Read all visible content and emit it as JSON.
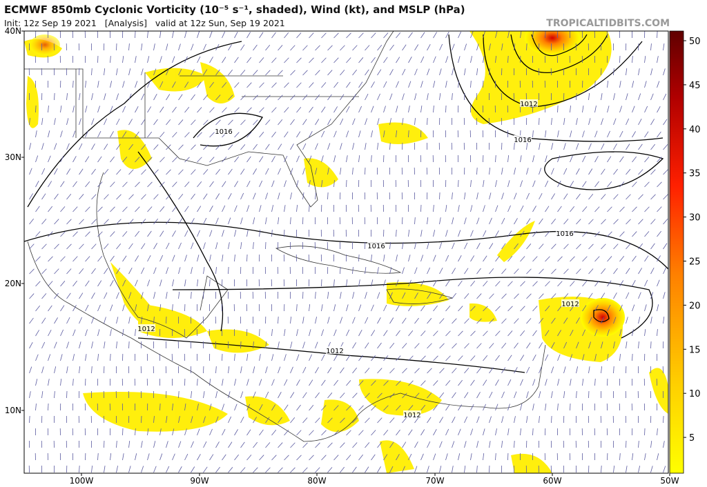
{
  "header": {
    "title": "ECMWF 850mb Cyclonic Vorticity (10⁻⁵ s⁻¹, shaded), Wind (kt), and MSLP (hPa)",
    "subtitle": "Init: 12z Sep 19 2021   [Analysis]   valid at 12z Sun, Sep 19 2021",
    "watermark": "TROPICALTIDBITS.COM"
  },
  "axes": {
    "latitude_labels": [
      "40N",
      "30N",
      "20N",
      "10N"
    ],
    "longitude_labels": [
      "100W",
      "90W",
      "80W",
      "70W",
      "60W",
      "50W"
    ]
  },
  "colorbar": {
    "labels": [
      "50",
      "45",
      "40",
      "35",
      "30",
      "25",
      "20",
      "15",
      "10",
      "5"
    ]
  },
  "isobar_labels": [
    "1012",
    "1012",
    "1012",
    "1012",
    "1012",
    "1016",
    "1016",
    "1016",
    "1016"
  ]
}
